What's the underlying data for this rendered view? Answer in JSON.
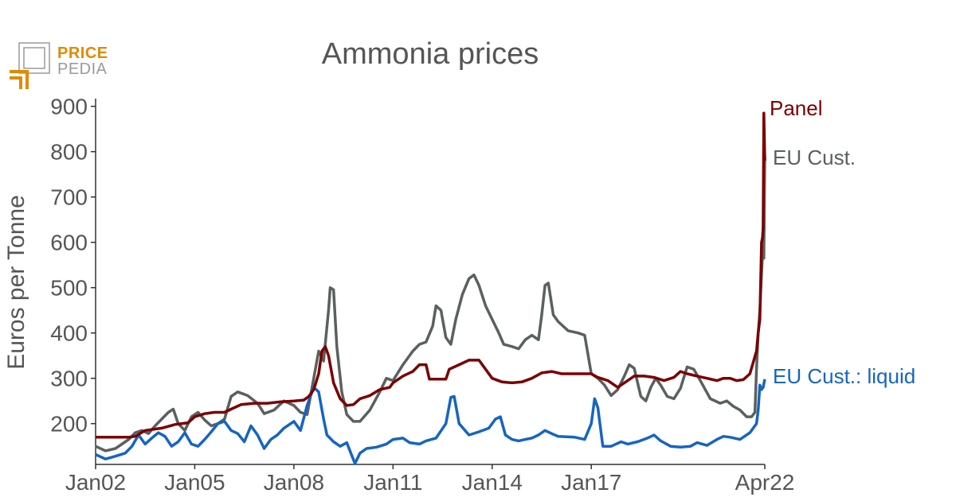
{
  "logo": {
    "line1": "PRICE",
    "line2": "PEDIA"
  },
  "colors": {
    "panel": "#7a0000",
    "eu_cust": "#5a6060",
    "eu_liquid": "#1565c0",
    "text": "#555555",
    "axis": "#333333"
  },
  "chart_data": {
    "type": "line",
    "title": "Ammonia prices",
    "xlabel": "",
    "ylabel": "Euros per Tonne",
    "xlim": [
      2002.0,
      2022.25
    ],
    "ylim": [
      110,
      910
    ],
    "yticks": [
      200,
      300,
      400,
      500,
      600,
      700,
      800,
      900
    ],
    "xticks": [
      {
        "value": 2002.0,
        "label": "Jan02"
      },
      {
        "value": 2005.0,
        "label": "Jan05"
      },
      {
        "value": 2008.0,
        "label": "Jan08"
      },
      {
        "value": 2011.0,
        "label": "Jan11"
      },
      {
        "value": 2014.0,
        "label": "Jan14"
      },
      {
        "value": 2017.0,
        "label": "Jan17"
      },
      {
        "value": 2022.25,
        "label": "Apr22"
      }
    ],
    "grid": false,
    "legend": "inline labels at series end",
    "series": [
      {
        "name": "Panel",
        "color": "#7a0000",
        "points": [
          [
            2002.0,
            170
          ],
          [
            2003.0,
            170
          ],
          [
            2003.2,
            172
          ],
          [
            2003.5,
            185
          ],
          [
            2004.0,
            190
          ],
          [
            2004.4,
            198
          ],
          [
            2004.8,
            202
          ],
          [
            2005.0,
            215
          ],
          [
            2005.3,
            222
          ],
          [
            2005.6,
            225
          ],
          [
            2005.9,
            225
          ],
          [
            2006.1,
            232
          ],
          [
            2006.4,
            242
          ],
          [
            2006.8,
            245
          ],
          [
            2007.2,
            245
          ],
          [
            2007.6,
            248
          ],
          [
            2008.0,
            250
          ],
          [
            2008.3,
            252
          ],
          [
            2008.45,
            260
          ],
          [
            2008.6,
            275
          ],
          [
            2008.75,
            310
          ],
          [
            2008.85,
            360
          ],
          [
            2008.95,
            370
          ],
          [
            2009.05,
            350
          ],
          [
            2009.2,
            290
          ],
          [
            2009.4,
            255
          ],
          [
            2009.6,
            240
          ],
          [
            2009.8,
            242
          ],
          [
            2010.0,
            255
          ],
          [
            2010.3,
            262
          ],
          [
            2010.6,
            275
          ],
          [
            2010.9,
            280
          ],
          [
            2011.0,
            290
          ],
          [
            2011.3,
            305
          ],
          [
            2011.6,
            315
          ],
          [
            2011.8,
            330
          ],
          [
            2012.0,
            330
          ],
          [
            2012.1,
            298
          ],
          [
            2012.3,
            298
          ],
          [
            2012.6,
            298
          ],
          [
            2012.7,
            320
          ],
          [
            2013.0,
            330
          ],
          [
            2013.3,
            340
          ],
          [
            2013.6,
            340
          ],
          [
            2013.8,
            320
          ],
          [
            2014.0,
            300
          ],
          [
            2014.3,
            292
          ],
          [
            2014.6,
            290
          ],
          [
            2014.9,
            292
          ],
          [
            2015.2,
            300
          ],
          [
            2015.5,
            312
          ],
          [
            2015.8,
            315
          ],
          [
            2016.1,
            310
          ],
          [
            2016.6,
            310
          ],
          [
            2017.0,
            310
          ],
          [
            2017.2,
            302
          ],
          [
            2017.5,
            295
          ],
          [
            2017.8,
            280
          ],
          [
            2018.0,
            290
          ],
          [
            2018.3,
            305
          ],
          [
            2018.6,
            305
          ],
          [
            2018.9,
            302
          ],
          [
            2019.2,
            295
          ],
          [
            2019.5,
            302
          ],
          [
            2019.7,
            315
          ],
          [
            2019.9,
            310
          ],
          [
            2020.2,
            305
          ],
          [
            2020.5,
            300
          ],
          [
            2020.8,
            295
          ],
          [
            2021.0,
            300
          ],
          [
            2021.2,
            300
          ],
          [
            2021.4,
            295
          ],
          [
            2021.6,
            297
          ],
          [
            2021.8,
            310
          ],
          [
            2022.0,
            360
          ],
          [
            2022.05,
            400
          ],
          [
            2022.1,
            430
          ],
          [
            2022.15,
            600
          ],
          [
            2022.18,
            610
          ],
          [
            2022.2,
            632
          ],
          [
            2022.22,
            885
          ],
          [
            2022.25,
            780
          ]
        ]
      },
      {
        "name": "EU Cust.",
        "color": "#5a6060",
        "points": [
          [
            2002.0,
            150
          ],
          [
            2002.3,
            140
          ],
          [
            2002.6,
            145
          ],
          [
            2002.9,
            160
          ],
          [
            2003.0,
            165
          ],
          [
            2003.2,
            180
          ],
          [
            2003.4,
            185
          ],
          [
            2003.6,
            178
          ],
          [
            2003.8,
            195
          ],
          [
            2004.0,
            210
          ],
          [
            2004.2,
            225
          ],
          [
            2004.35,
            232
          ],
          [
            2004.5,
            200
          ],
          [
            2004.7,
            185
          ],
          [
            2004.9,
            215
          ],
          [
            2005.1,
            225
          ],
          [
            2005.3,
            208
          ],
          [
            2005.5,
            195
          ],
          [
            2005.7,
            200
          ],
          [
            2005.9,
            210
          ],
          [
            2006.1,
            260
          ],
          [
            2006.3,
            270
          ],
          [
            2006.6,
            262
          ],
          [
            2006.9,
            245
          ],
          [
            2007.1,
            222
          ],
          [
            2007.4,
            230
          ],
          [
            2007.7,
            250
          ],
          [
            2008.0,
            240
          ],
          [
            2008.2,
            225
          ],
          [
            2008.4,
            220
          ],
          [
            2008.6,
            300
          ],
          [
            2008.75,
            360
          ],
          [
            2008.9,
            338
          ],
          [
            2009.05,
            450
          ],
          [
            2009.1,
            500
          ],
          [
            2009.2,
            495
          ],
          [
            2009.3,
            370
          ],
          [
            2009.45,
            270
          ],
          [
            2009.6,
            220
          ],
          [
            2009.8,
            205
          ],
          [
            2010.0,
            205
          ],
          [
            2010.3,
            230
          ],
          [
            2010.6,
            270
          ],
          [
            2010.8,
            300
          ],
          [
            2011.0,
            295
          ],
          [
            2011.3,
            330
          ],
          [
            2011.6,
            360
          ],
          [
            2011.8,
            375
          ],
          [
            2012.0,
            380
          ],
          [
            2012.2,
            415
          ],
          [
            2012.3,
            460
          ],
          [
            2012.45,
            450
          ],
          [
            2012.6,
            390
          ],
          [
            2012.75,
            375
          ],
          [
            2012.9,
            430
          ],
          [
            2013.1,
            485
          ],
          [
            2013.3,
            520
          ],
          [
            2013.45,
            528
          ],
          [
            2013.6,
            505
          ],
          [
            2013.8,
            460
          ],
          [
            2014.0,
            430
          ],
          [
            2014.2,
            400
          ],
          [
            2014.35,
            375
          ],
          [
            2014.6,
            370
          ],
          [
            2014.8,
            365
          ],
          [
            2015.0,
            385
          ],
          [
            2015.2,
            395
          ],
          [
            2015.4,
            385
          ],
          [
            2015.5,
            440
          ],
          [
            2015.6,
            505
          ],
          [
            2015.7,
            510
          ],
          [
            2015.85,
            440
          ],
          [
            2016.0,
            425
          ],
          [
            2016.3,
            405
          ],
          [
            2016.6,
            400
          ],
          [
            2016.8,
            395
          ],
          [
            2017.0,
            310
          ],
          [
            2017.2,
            300
          ],
          [
            2017.4,
            285
          ],
          [
            2017.6,
            262
          ],
          [
            2017.8,
            275
          ],
          [
            2018.0,
            305
          ],
          [
            2018.15,
            330
          ],
          [
            2018.3,
            322
          ],
          [
            2018.5,
            260
          ],
          [
            2018.65,
            250
          ],
          [
            2018.8,
            280
          ],
          [
            2018.95,
            300
          ],
          [
            2019.1,
            285
          ],
          [
            2019.3,
            260
          ],
          [
            2019.5,
            255
          ],
          [
            2019.7,
            278
          ],
          [
            2019.9,
            325
          ],
          [
            2020.1,
            320
          ],
          [
            2020.3,
            295
          ],
          [
            2020.6,
            255
          ],
          [
            2020.9,
            245
          ],
          [
            2021.1,
            250
          ],
          [
            2021.3,
            238
          ],
          [
            2021.5,
            230
          ],
          [
            2021.7,
            215
          ],
          [
            2021.85,
            215
          ],
          [
            2021.95,
            225
          ],
          [
            2022.0,
            320
          ],
          [
            2022.05,
            400
          ],
          [
            2022.1,
            450
          ],
          [
            2022.15,
            530
          ],
          [
            2022.18,
            570
          ],
          [
            2022.2,
            580
          ],
          [
            2022.22,
            565
          ],
          [
            2022.25,
            790
          ]
        ]
      },
      {
        "name": "EU Cust.: liquid",
        "color": "#1565c0",
        "points": [
          [
            2002.0,
            132
          ],
          [
            2002.3,
            122
          ],
          [
            2002.6,
            128
          ],
          [
            2002.9,
            135
          ],
          [
            2003.1,
            150
          ],
          [
            2003.3,
            175
          ],
          [
            2003.5,
            155
          ],
          [
            2003.7,
            168
          ],
          [
            2003.9,
            180
          ],
          [
            2004.1,
            172
          ],
          [
            2004.3,
            150
          ],
          [
            2004.5,
            160
          ],
          [
            2004.7,
            180
          ],
          [
            2004.9,
            155
          ],
          [
            2005.1,
            150
          ],
          [
            2005.3,
            165
          ],
          [
            2005.5,
            182
          ],
          [
            2005.7,
            200
          ],
          [
            2005.9,
            205
          ],
          [
            2006.1,
            185
          ],
          [
            2006.3,
            178
          ],
          [
            2006.5,
            160
          ],
          [
            2006.7,
            195
          ],
          [
            2006.9,
            175
          ],
          [
            2007.1,
            145
          ],
          [
            2007.3,
            165
          ],
          [
            2007.5,
            175
          ],
          [
            2007.7,
            190
          ],
          [
            2008.0,
            205
          ],
          [
            2008.2,
            185
          ],
          [
            2008.4,
            240
          ],
          [
            2008.6,
            280
          ],
          [
            2008.75,
            270
          ],
          [
            2008.9,
            210
          ],
          [
            2009.0,
            175
          ],
          [
            2009.2,
            160
          ],
          [
            2009.4,
            150
          ],
          [
            2009.6,
            158
          ],
          [
            2009.75,
            130
          ],
          [
            2009.85,
            112
          ],
          [
            2010.0,
            135
          ],
          [
            2010.2,
            145
          ],
          [
            2010.5,
            148
          ],
          [
            2010.8,
            155
          ],
          [
            2011.0,
            165
          ],
          [
            2011.3,
            168
          ],
          [
            2011.5,
            158
          ],
          [
            2011.8,
            155
          ],
          [
            2012.0,
            162
          ],
          [
            2012.3,
            168
          ],
          [
            2012.6,
            200
          ],
          [
            2012.75,
            258
          ],
          [
            2012.85,
            260
          ],
          [
            2013.0,
            200
          ],
          [
            2013.3,
            175
          ],
          [
            2013.6,
            182
          ],
          [
            2013.9,
            190
          ],
          [
            2014.1,
            210
          ],
          [
            2014.25,
            215
          ],
          [
            2014.4,
            175
          ],
          [
            2014.6,
            165
          ],
          [
            2014.8,
            162
          ],
          [
            2015.0,
            165
          ],
          [
            2015.2,
            168
          ],
          [
            2015.4,
            175
          ],
          [
            2015.6,
            185
          ],
          [
            2015.8,
            178
          ],
          [
            2016.0,
            172
          ],
          [
            2016.5,
            170
          ],
          [
            2016.8,
            165
          ],
          [
            2017.0,
            200
          ],
          [
            2017.1,
            255
          ],
          [
            2017.2,
            235
          ],
          [
            2017.35,
            150
          ],
          [
            2017.6,
            150
          ],
          [
            2017.9,
            160
          ],
          [
            2018.1,
            155
          ],
          [
            2018.4,
            160
          ],
          [
            2018.7,
            168
          ],
          [
            2018.9,
            175
          ],
          [
            2019.1,
            162
          ],
          [
            2019.4,
            150
          ],
          [
            2019.7,
            148
          ],
          [
            2020.0,
            150
          ],
          [
            2020.2,
            158
          ],
          [
            2020.5,
            152
          ],
          [
            2020.8,
            165
          ],
          [
            2021.0,
            172
          ],
          [
            2021.2,
            170
          ],
          [
            2021.5,
            165
          ],
          [
            2021.8,
            180
          ],
          [
            2022.0,
            200
          ],
          [
            2022.05,
            230
          ],
          [
            2022.1,
            285
          ],
          [
            2022.15,
            275
          ],
          [
            2022.2,
            280
          ],
          [
            2022.25,
            298
          ]
        ]
      }
    ]
  }
}
